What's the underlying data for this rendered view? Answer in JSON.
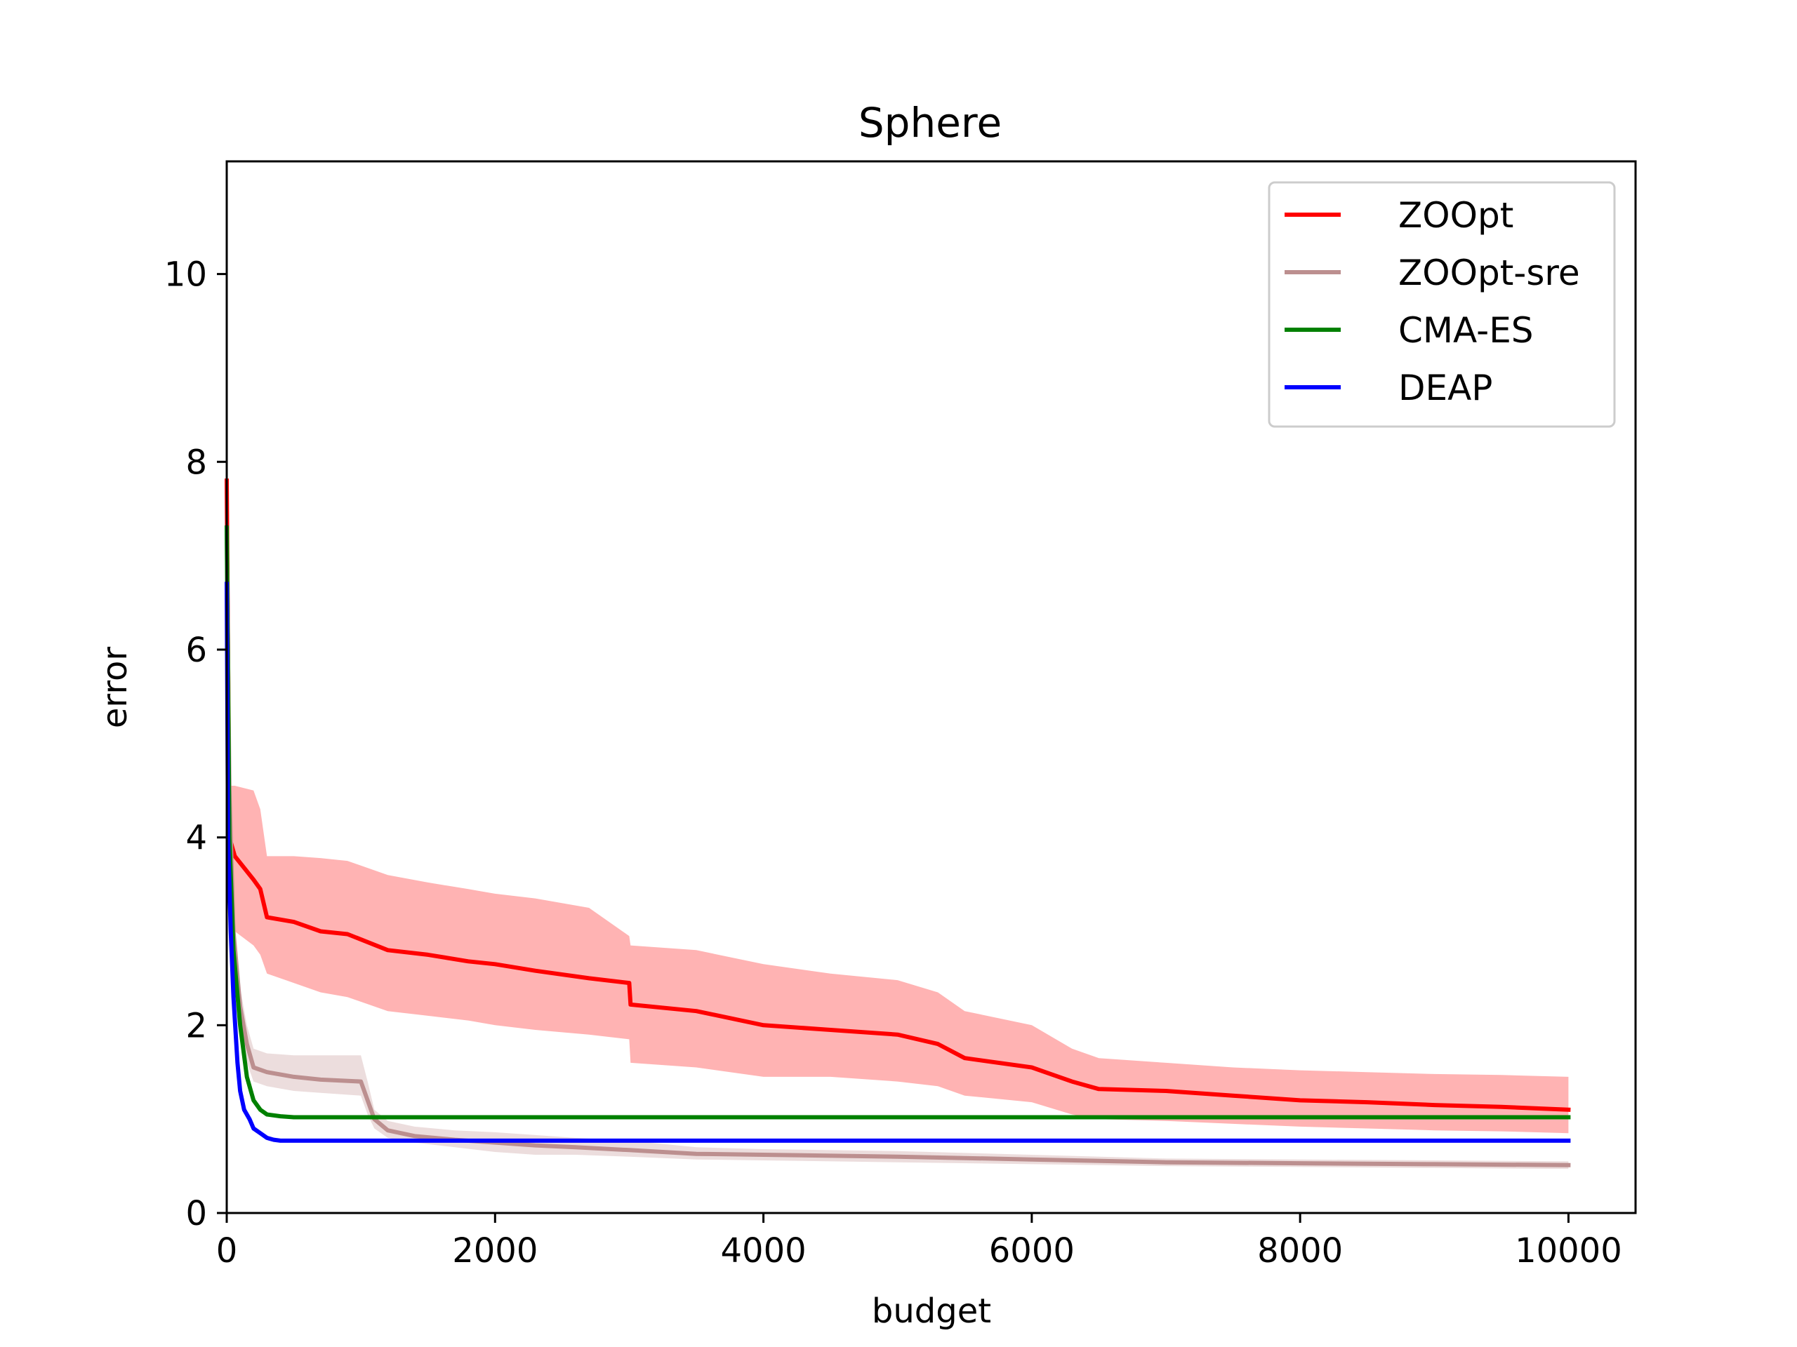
{
  "chart_data": {
    "type": "line",
    "title": "Sphere",
    "xlabel": "budget",
    "ylabel": "error",
    "xlim": [
      0,
      10500
    ],
    "ylim": [
      0,
      11.2
    ],
    "xticks": [
      0,
      2000,
      4000,
      6000,
      8000,
      10000
    ],
    "yticks": [
      0,
      2,
      4,
      6,
      8,
      10
    ],
    "xtick_labels": [
      "0",
      "2000",
      "4000",
      "6000",
      "8000",
      "10000"
    ],
    "ytick_labels": [
      "0",
      "2",
      "4",
      "6",
      "8",
      "10"
    ],
    "grid": false,
    "legend_position": "top-right",
    "series": [
      {
        "name": "ZOOpt",
        "color": "#ff0000",
        "band_color": "#ff9999",
        "x": [
          0,
          20,
          60,
          200,
          250,
          300,
          500,
          700,
          900,
          1200,
          1500,
          1800,
          2000,
          2300,
          2700,
          3000,
          3010,
          3500,
          4000,
          4500,
          5000,
          5300,
          5500,
          6000,
          6300,
          6500,
          7000,
          7500,
          8000,
          8500,
          9000,
          9500,
          10000
        ],
        "y": [
          7.8,
          4.0,
          3.8,
          3.55,
          3.45,
          3.15,
          3.1,
          3.0,
          2.97,
          2.8,
          2.75,
          2.68,
          2.65,
          2.58,
          2.5,
          2.45,
          2.22,
          2.15,
          2.0,
          1.95,
          1.9,
          1.8,
          1.65,
          1.55,
          1.4,
          1.32,
          1.3,
          1.25,
          1.2,
          1.18,
          1.15,
          1.13,
          1.1
        ],
        "lower": [
          7.5,
          3.4,
          3.0,
          2.85,
          2.75,
          2.55,
          2.45,
          2.35,
          2.3,
          2.15,
          2.1,
          2.05,
          2.0,
          1.95,
          1.9,
          1.85,
          1.6,
          1.55,
          1.45,
          1.45,
          1.4,
          1.35,
          1.25,
          1.18,
          1.05,
          1.0,
          0.98,
          0.95,
          0.92,
          0.9,
          0.88,
          0.87,
          0.85
        ],
        "upper": [
          7.9,
          4.55,
          4.55,
          4.5,
          4.3,
          3.8,
          3.8,
          3.78,
          3.75,
          3.6,
          3.52,
          3.45,
          3.4,
          3.35,
          3.25,
          2.95,
          2.85,
          2.8,
          2.65,
          2.55,
          2.48,
          2.35,
          2.15,
          2.0,
          1.75,
          1.65,
          1.6,
          1.55,
          1.52,
          1.5,
          1.48,
          1.47,
          1.45
        ]
      },
      {
        "name": "ZOOpt-sre",
        "color": "#bc8f8f",
        "band_color": "#e6d2d2",
        "x": [
          0,
          20,
          50,
          100,
          150,
          200,
          300,
          500,
          700,
          1000,
          1050,
          1100,
          1200,
          1400,
          1700,
          2000,
          2300,
          2600,
          3000,
          3500,
          4000,
          5000,
          6000,
          7000,
          8000,
          9000,
          10000
        ],
        "y": [
          7.3,
          4.5,
          3.0,
          2.2,
          1.8,
          1.55,
          1.5,
          1.45,
          1.42,
          1.4,
          1.2,
          1.0,
          0.88,
          0.82,
          0.78,
          0.75,
          0.72,
          0.7,
          0.67,
          0.63,
          0.62,
          0.6,
          0.57,
          0.54,
          0.53,
          0.52,
          0.51
        ],
        "lower": [
          7.2,
          4.2,
          2.8,
          2.0,
          1.6,
          1.4,
          1.35,
          1.3,
          1.28,
          1.25,
          1.05,
          0.9,
          0.8,
          0.75,
          0.7,
          0.65,
          0.62,
          0.62,
          0.6,
          0.57,
          0.56,
          0.54,
          0.52,
          0.5,
          0.49,
          0.48,
          0.47
        ],
        "upper": [
          7.4,
          4.8,
          3.2,
          2.4,
          2.0,
          1.75,
          1.7,
          1.68,
          1.68,
          1.68,
          1.4,
          1.1,
          0.98,
          0.92,
          0.88,
          0.86,
          0.83,
          0.8,
          0.77,
          0.7,
          0.68,
          0.66,
          0.62,
          0.58,
          0.57,
          0.56,
          0.55
        ]
      },
      {
        "name": "CMA-ES",
        "color": "#008000",
        "x": [
          0,
          20,
          50,
          100,
          150,
          200,
          250,
          300,
          400,
          500,
          10000
        ],
        "y": [
          7.3,
          4.0,
          2.8,
          2.0,
          1.45,
          1.2,
          1.1,
          1.05,
          1.03,
          1.02,
          1.02
        ]
      },
      {
        "name": "DEAP",
        "color": "#0000ff",
        "x": [
          0,
          10,
          30,
          50,
          80,
          100,
          130,
          170,
          200,
          250,
          300,
          350,
          400,
          500,
          10000
        ],
        "y": [
          6.7,
          4.0,
          3.0,
          2.3,
          1.6,
          1.3,
          1.1,
          1.0,
          0.9,
          0.85,
          0.8,
          0.78,
          0.77,
          0.77,
          0.77
        ]
      }
    ]
  }
}
